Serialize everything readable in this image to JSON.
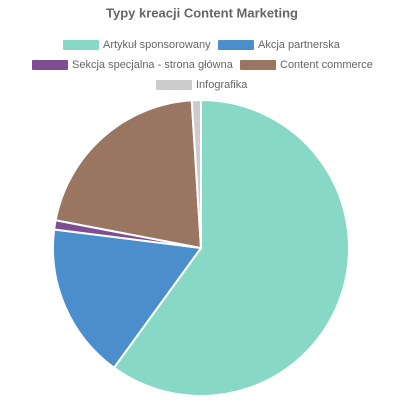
{
  "chart_data": {
    "type": "pie",
    "title": "Typy kreacji Content Marketing",
    "categories": [
      "Artykuł sponsorowany",
      "Akcja partnerska",
      "Sekcja specjalna - strona główna",
      "Content commerce",
      "Infografika"
    ],
    "values": [
      60,
      17,
      1,
      21,
      1
    ],
    "colors": [
      "#88d8c6",
      "#4a8fcb",
      "#7e4e92",
      "#9a7562",
      "#cccccc"
    ]
  }
}
